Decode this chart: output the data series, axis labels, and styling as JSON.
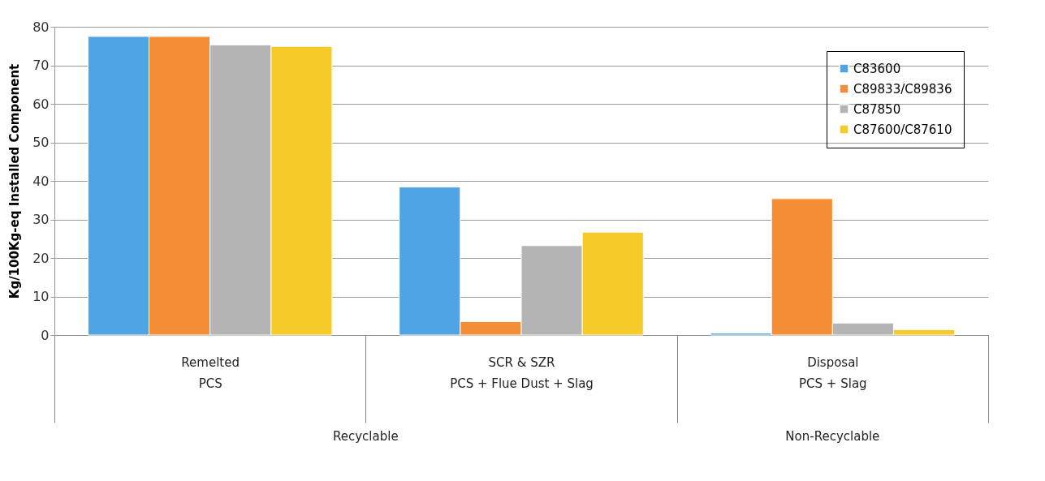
{
  "chart_data": {
    "type": "bar",
    "ylabel": "Kg/100Kg-eq Installed Component",
    "categories": [
      "Remelted\nPCS",
      "SCR & SZR\nPCS + Flue Dust + Slag",
      "Disposal\nPCS + Slag"
    ],
    "series": [
      {
        "name": "C83600",
        "color": "#4fa5e3",
        "values": [
          77.5,
          38.4,
          0.5
        ]
      },
      {
        "name": "C89833/C89836",
        "color": "#f48e37",
        "values": [
          77.5,
          3.5,
          35.4
        ]
      },
      {
        "name": "C87850",
        "color": "#b4b4b4",
        "values": [
          75.3,
          23.2,
          3.1
        ]
      },
      {
        "name": "C87600/C87610",
        "color": "#f6ca29",
        "values": [
          74.9,
          26.7,
          1.4
        ]
      }
    ],
    "ylim": [
      0,
      80
    ],
    "yticks": [
      0,
      10,
      20,
      30,
      40,
      50,
      60,
      70,
      80
    ],
    "grid": "y",
    "legend": "top right",
    "annotations": [
      "Recyclable",
      "Non-Recyclable"
    ]
  }
}
